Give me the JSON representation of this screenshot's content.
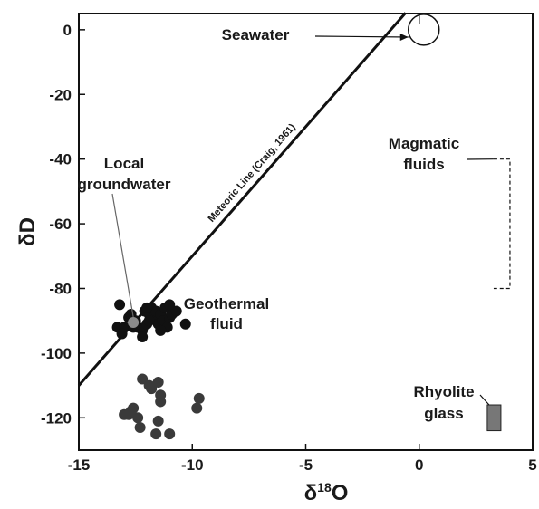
{
  "chart_data": {
    "type": "scatter",
    "title": "",
    "xlabel": "δ18O",
    "xlabel_main": "δ",
    "xlabel_sup": "18",
    "xlabel_tail": "O",
    "ylabel": "δD",
    "xlim": [
      -15,
      5
    ],
    "ylim": [
      -130,
      5
    ],
    "xticks": [
      -15,
      -10,
      -5,
      0,
      5
    ],
    "yticks": [
      0,
      -20,
      -40,
      -60,
      -80,
      -100,
      -120
    ],
    "grid": false,
    "meteoric_line": {
      "label": "Meteoric Line (Craig, 1961)",
      "slope": 8,
      "intercept": 10,
      "x_range": [
        -15,
        -0.6
      ]
    },
    "series": [
      {
        "points": [
          [
            -13.2,
            -85
          ],
          [
            -13.3,
            -92
          ],
          [
            -13.0,
            -92
          ],
          [
            -12.8,
            -89
          ],
          [
            -12.7,
            -88
          ],
          [
            -12.5,
            -90
          ],
          [
            -12.4,
            -92
          ],
          [
            -12.2,
            -93
          ],
          [
            -12.0,
            -91
          ],
          [
            -11.9,
            -88
          ],
          [
            -11.8,
            -86
          ],
          [
            -11.7,
            -89
          ],
          [
            -11.6,
            -87
          ],
          [
            -11.5,
            -91
          ],
          [
            -11.4,
            -88
          ],
          [
            -11.3,
            -90
          ],
          [
            -11.2,
            -86
          ],
          [
            -11.1,
            -92
          ],
          [
            -11.0,
            -89
          ],
          [
            -10.9,
            -88
          ],
          [
            -10.7,
            -87
          ],
          [
            -10.3,
            -91
          ],
          [
            -12.1,
            -87
          ],
          [
            -11.9,
            -90
          ],
          [
            -12.2,
            -95
          ],
          [
            -13.1,
            -94
          ],
          [
            -12.6,
            -92
          ],
          [
            -11.4,
            -93
          ],
          [
            -11.0,
            -85
          ],
          [
            -12.0,
            -86
          ]
        ],
        "color": "#111111"
      },
      {
        "points": [
          [
            -13.0,
            -119
          ],
          [
            -12.8,
            -119
          ],
          [
            -12.6,
            -117
          ],
          [
            -12.4,
            -120
          ],
          [
            -12.7,
            -118
          ],
          [
            -12.3,
            -123
          ],
          [
            -12.2,
            -108
          ],
          [
            -11.8,
            -111
          ],
          [
            -11.9,
            -110
          ],
          [
            -11.5,
            -109
          ],
          [
            -11.4,
            -113
          ],
          [
            -11.4,
            -115
          ],
          [
            -11.5,
            -121
          ],
          [
            -11.6,
            -125
          ],
          [
            -11.0,
            -125
          ],
          [
            -9.8,
            -117
          ],
          [
            -9.7,
            -114
          ]
        ],
        "color": "#3a3a3a"
      }
    ],
    "local_groundwater_point": [
      -12.6,
      -90.5
    ],
    "seawater": {
      "label": "Seawater",
      "x": 0,
      "y": 0
    },
    "magmatic_fluids": {
      "label_line1": "Magmatic",
      "label_line2": "fluids",
      "x": 4,
      "y_range": [
        -80,
        -40
      ]
    },
    "rhyolite_glass": {
      "label_line1": "Rhyolite",
      "label_line2": "glass",
      "x_range": [
        3,
        3.6
      ],
      "y_range": [
        -124,
        -116
      ]
    },
    "annotations": {
      "local_groundwater_line1": "Local",
      "local_groundwater_line2": "groundwater",
      "geothermal_line1": "Geothermal",
      "geothermal_line2": "fluid"
    }
  }
}
